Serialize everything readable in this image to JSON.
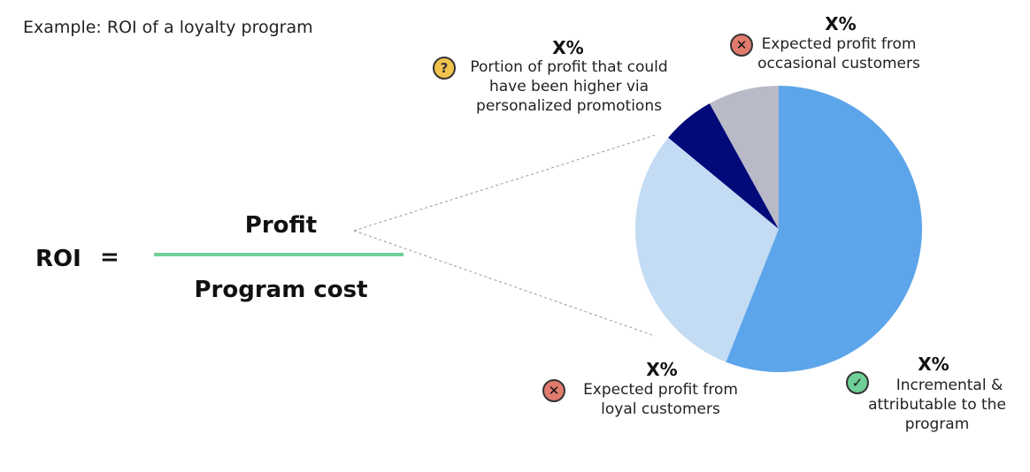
{
  "title": "Example: ROI of a loyalty program",
  "formula": {
    "lhs": "ROI",
    "equals": "=",
    "numerator": "Profit",
    "denominator": "Program cost"
  },
  "segments": [
    {
      "id": "incremental",
      "value": "X%",
      "label_lines": [
        "Incremental &",
        "attributable to the",
        "program"
      ],
      "icon": "check-icon",
      "fraction": 0.56,
      "color": "#5da5ea"
    },
    {
      "id": "loyal",
      "value": "X%",
      "label_lines": [
        "Expected profit from",
        "loyal customers"
      ],
      "icon": "x-icon",
      "fraction": 0.3,
      "color": "#c3dbf3"
    },
    {
      "id": "personalized",
      "value": "X%",
      "label_lines": [
        "Portion of profit that could",
        "have been higher via",
        "personalized promotions"
      ],
      "icon": "question-icon",
      "fraction": 0.06,
      "color": "#020a7a"
    },
    {
      "id": "occasional",
      "value": "X%",
      "label_lines": [
        "Expected profit from",
        "occasional customers"
      ],
      "icon": "x-icon",
      "fraction": 0.08,
      "color": "#b9bac8"
    }
  ],
  "colors": {
    "fraction_line": "#6fcf97",
    "leader_line": "#999999"
  }
}
